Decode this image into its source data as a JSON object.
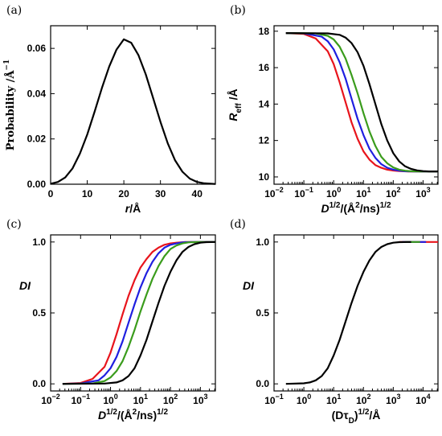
{
  "chart_data": [
    {
      "panel": "(a)",
      "type": "line",
      "ylabel": "Probability /Å",
      "ylabel_sup": "−1",
      "xlabel_var": "r",
      "xlabel_rest": "/Å",
      "xscale": "linear",
      "xlim": [
        0,
        45
      ],
      "ylim": [
        0,
        0.07
      ],
      "xticks": [
        0,
        10,
        20,
        30,
        40
      ],
      "xtick_labels": [
        "0",
        "10",
        "20",
        "30",
        "40"
      ],
      "yticks": [
        0,
        0.02,
        0.04,
        0.06
      ],
      "ytick_labels": [
        "0.00",
        "0.02",
        "0.04",
        "0.06"
      ],
      "series": [
        {
          "color": "#000000",
          "x": [
            0,
            2,
            4,
            6,
            8,
            10,
            12,
            14,
            16,
            18,
            20,
            22,
            24,
            26,
            28,
            30,
            32,
            34,
            36,
            38,
            40,
            42,
            45
          ],
          "y": [
            0.0002,
            0.001,
            0.003,
            0.007,
            0.0135,
            0.022,
            0.032,
            0.0425,
            0.052,
            0.0595,
            0.064,
            0.0625,
            0.057,
            0.0485,
            0.038,
            0.0275,
            0.018,
            0.0105,
            0.0055,
            0.0025,
            0.001,
            0.0004,
            0.0001
          ]
        }
      ]
    },
    {
      "panel": "(b)",
      "type": "line",
      "ylabel_var": "R",
      "ylabel_sub": "eff",
      "ylabel_rest": " /Å",
      "xlabel_main": "D",
      "xlabel_sup1": "1/2",
      "xlabel_mid": "/(Å",
      "xlabel_sup2": "2",
      "xlabel_end": "/ns)",
      "xlabel_sup3": "1/2",
      "xscale": "log",
      "xlim": [
        -2,
        3.5
      ],
      "ylim": [
        9.6,
        18.3
      ],
      "xticks": [
        -2,
        -1,
        0,
        1,
        2,
        3
      ],
      "xtick_labels": [
        [
          "10",
          "−2"
        ],
        [
          "10",
          "−1"
        ],
        [
          "10",
          "0"
        ],
        [
          "10",
          "1"
        ],
        [
          "10",
          "2"
        ],
        [
          "10",
          "3"
        ]
      ],
      "yticks": [
        10,
        12,
        14,
        16,
        18
      ],
      "ytick_labels": [
        "10",
        "12",
        "14",
        "16",
        "18"
      ],
      "series": [
        {
          "color": "#e8141c",
          "x": [
            -1.6,
            -1.0,
            -0.6,
            -0.2,
            0.0,
            0.2,
            0.4,
            0.6,
            0.8,
            1.0,
            1.2,
            1.4,
            1.6,
            1.8,
            2.0,
            2.2,
            2.5,
            3.0,
            3.5
          ],
          "y": [
            17.9,
            17.85,
            17.6,
            16.9,
            16.2,
            15.2,
            14.1,
            13.0,
            12.1,
            11.4,
            10.95,
            10.65,
            10.5,
            10.4,
            10.35,
            10.32,
            10.3,
            10.3,
            10.3
          ]
        },
        {
          "color": "#1f1fe0",
          "x": [
            -1.6,
            -1.0,
            -0.4,
            -0.2,
            0.0,
            0.2,
            0.4,
            0.6,
            0.8,
            1.0,
            1.2,
            1.4,
            1.6,
            1.8,
            2.0,
            2.2,
            2.4,
            2.7,
            3.5
          ],
          "y": [
            17.9,
            17.88,
            17.7,
            17.45,
            17.0,
            16.3,
            15.4,
            14.3,
            13.2,
            12.3,
            11.55,
            11.05,
            10.7,
            10.5,
            10.4,
            10.34,
            10.31,
            10.3,
            10.3
          ]
        },
        {
          "color": "#3a9c1c",
          "x": [
            -1.6,
            -0.6,
            -0.2,
            0.0,
            0.2,
            0.4,
            0.6,
            0.8,
            1.0,
            1.2,
            1.4,
            1.6,
            1.8,
            2.0,
            2.2,
            2.4,
            2.6,
            2.9,
            3.5
          ],
          "y": [
            17.9,
            17.88,
            17.75,
            17.55,
            17.15,
            16.5,
            15.6,
            14.6,
            13.5,
            12.5,
            11.7,
            11.1,
            10.75,
            10.52,
            10.4,
            10.34,
            10.31,
            10.3,
            10.3
          ]
        },
        {
          "color": "#000000",
          "x": [
            -1.6,
            -0.2,
            0.2,
            0.4,
            0.6,
            0.8,
            1.0,
            1.2,
            1.4,
            1.6,
            1.8,
            2.0,
            2.2,
            2.4,
            2.6,
            2.8,
            3.0,
            3.2,
            3.5
          ],
          "y": [
            17.9,
            17.88,
            17.8,
            17.65,
            17.35,
            16.85,
            16.1,
            15.1,
            14.0,
            12.9,
            12.0,
            11.3,
            10.85,
            10.58,
            10.44,
            10.36,
            10.32,
            10.3,
            10.3
          ]
        }
      ]
    },
    {
      "panel": "(c)",
      "type": "line",
      "ylabel": "DI",
      "xlabel_main": "D",
      "xlabel_sup1": "1/2",
      "xlabel_mid": "/(Å",
      "xlabel_sup2": "2",
      "xlabel_end": "/ns)",
      "xlabel_sup3": "1/2",
      "xscale": "log",
      "xlim": [
        -2,
        3.5
      ],
      "ylim": [
        -0.05,
        1.05
      ],
      "xticks": [
        -2,
        -1,
        0,
        1,
        2,
        3
      ],
      "xtick_labels": [
        [
          "10",
          "−2"
        ],
        [
          "10",
          "−1"
        ],
        [
          "10",
          "0"
        ],
        [
          "10",
          "1"
        ],
        [
          "10",
          "2"
        ],
        [
          "10",
          "3"
        ]
      ],
      "yticks": [
        0,
        0.5,
        1.0
      ],
      "ytick_labels": [
        "0.0",
        "0.5",
        "1.0"
      ],
      "series": [
        {
          "color": "#e8141c",
          "x": [
            -1.6,
            -1.0,
            -0.6,
            -0.2,
            0.0,
            0.2,
            0.4,
            0.6,
            0.8,
            1.0,
            1.2,
            1.4,
            1.6,
            1.8,
            2.0,
            2.2,
            2.5,
            3.0,
            3.5
          ],
          "y": [
            0.0,
            0.006,
            0.035,
            0.12,
            0.22,
            0.35,
            0.49,
            0.62,
            0.73,
            0.82,
            0.88,
            0.93,
            0.96,
            0.98,
            0.99,
            0.995,
            1.0,
            1.0,
            1.0
          ]
        },
        {
          "color": "#1f1fe0",
          "x": [
            -1.6,
            -1.0,
            -0.4,
            -0.2,
            0.0,
            0.2,
            0.4,
            0.6,
            0.8,
            1.0,
            1.2,
            1.4,
            1.6,
            1.8,
            2.0,
            2.2,
            2.4,
            2.7,
            3.5
          ],
          "y": [
            0.0,
            0.003,
            0.025,
            0.06,
            0.11,
            0.19,
            0.3,
            0.43,
            0.56,
            0.68,
            0.78,
            0.86,
            0.92,
            0.96,
            0.98,
            0.99,
            0.997,
            1.0,
            1.0
          ]
        },
        {
          "color": "#3a9c1c",
          "x": [
            -1.6,
            -0.6,
            -0.2,
            0.0,
            0.2,
            0.4,
            0.6,
            0.8,
            1.0,
            1.2,
            1.4,
            1.6,
            1.8,
            2.0,
            2.2,
            2.4,
            2.6,
            2.9,
            3.5
          ],
          "y": [
            0.0,
            0.003,
            0.02,
            0.045,
            0.09,
            0.16,
            0.26,
            0.38,
            0.51,
            0.63,
            0.74,
            0.83,
            0.9,
            0.95,
            0.975,
            0.99,
            0.997,
            1.0,
            1.0
          ]
        },
        {
          "color": "#000000",
          "x": [
            -1.6,
            -0.2,
            0.2,
            0.4,
            0.6,
            0.8,
            1.0,
            1.2,
            1.4,
            1.6,
            1.8,
            2.0,
            2.2,
            2.4,
            2.6,
            2.8,
            3.0,
            3.2,
            3.5
          ],
          "y": [
            0.0,
            0.002,
            0.01,
            0.025,
            0.055,
            0.11,
            0.2,
            0.31,
            0.44,
            0.57,
            0.69,
            0.79,
            0.87,
            0.93,
            0.965,
            0.985,
            0.995,
            0.999,
            1.0
          ]
        }
      ]
    },
    {
      "panel": "(d)",
      "type": "line",
      "ylabel": "DI",
      "xlabel_open": "(Dτ",
      "xlabel_sub": "D",
      "xlabel_close": ")",
      "xlabel_sup": "1/2",
      "xlabel_end": "/Å",
      "xscale": "log",
      "xlim": [
        -1,
        4.5
      ],
      "ylim": [
        -0.05,
        1.05
      ],
      "xticks": [
        -1,
        0,
        1,
        2,
        3,
        4
      ],
      "xtick_labels": [
        [
          "10",
          "−1"
        ],
        [
          "10",
          "0"
        ],
        [
          "10",
          "1"
        ],
        [
          "10",
          "2"
        ],
        [
          "10",
          "3"
        ],
        [
          "10",
          "4"
        ]
      ],
      "yticks": [
        0,
        0.5,
        1.0
      ],
      "ytick_labels": [
        "0.0",
        "0.5",
        "1.0"
      ],
      "series": [
        {
          "color": "#e8141c",
          "x": [
            3.2,
            4.5
          ],
          "y": [
            1.0,
            1.0
          ]
        },
        {
          "color": "#1f1fe0",
          "x": [
            3.3,
            4.1
          ],
          "y": [
            1.0,
            1.0
          ]
        },
        {
          "color": "#3a9c1c",
          "x": [
            3.4,
            3.9
          ],
          "y": [
            1.0,
            1.0
          ]
        },
        {
          "color": "#000000",
          "x": [
            -0.6,
            0.0,
            0.2,
            0.4,
            0.6,
            0.8,
            1.0,
            1.2,
            1.4,
            1.6,
            1.8,
            2.0,
            2.2,
            2.4,
            2.6,
            2.8,
            3.0,
            3.2,
            3.6
          ],
          "y": [
            0.0,
            0.004,
            0.01,
            0.025,
            0.055,
            0.11,
            0.2,
            0.31,
            0.44,
            0.57,
            0.69,
            0.79,
            0.87,
            0.93,
            0.965,
            0.985,
            0.995,
            0.999,
            1.0
          ]
        }
      ]
    }
  ]
}
